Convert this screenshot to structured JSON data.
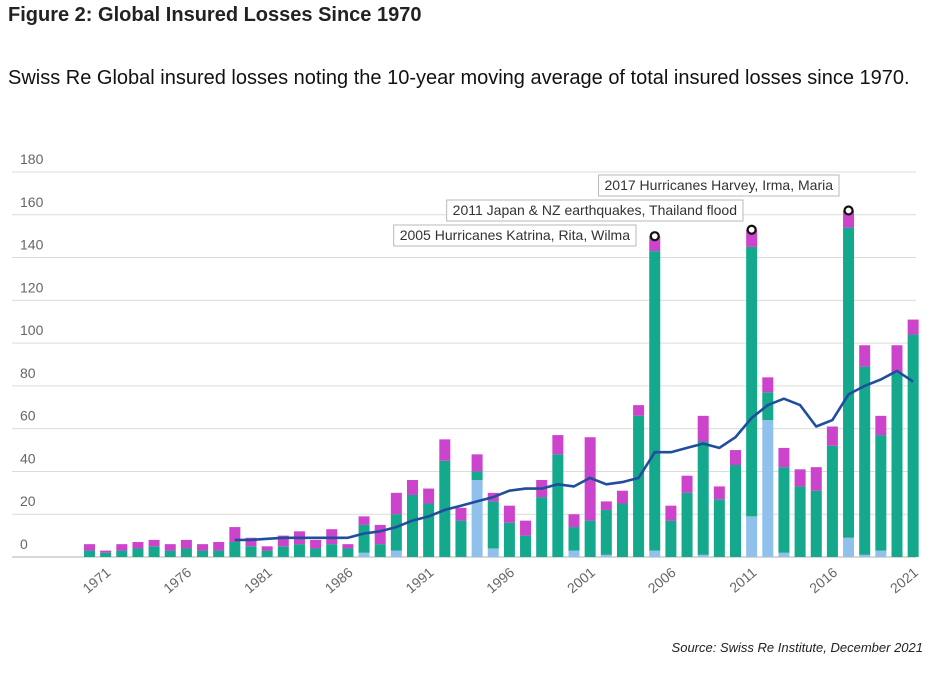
{
  "figure": {
    "title": "Figure 2: Global Insured Losses Since 1970",
    "subtitle": "Swiss Re Global insured losses noting the 10-year moving average of total insured losses since 1970.",
    "source": "Source: Swiss Re Institute, December 2021"
  },
  "chart_data": {
    "type": "bar",
    "stacked": true,
    "years": [
      1970,
      1971,
      1972,
      1973,
      1974,
      1975,
      1976,
      1977,
      1978,
      1979,
      1980,
      1981,
      1982,
      1983,
      1984,
      1985,
      1986,
      1987,
      1988,
      1989,
      1990,
      1991,
      1992,
      1993,
      1994,
      1995,
      1996,
      1997,
      1998,
      1999,
      2000,
      2001,
      2002,
      2003,
      2004,
      2005,
      2006,
      2007,
      2008,
      2009,
      2010,
      2011,
      2012,
      2013,
      2014,
      2015,
      2016,
      2017,
      2018,
      2019,
      2020,
      2021
    ],
    "series": [
      {
        "color": "#8fc1ec",
        "values": [
          0,
          0,
          0,
          0,
          0,
          0,
          0,
          0,
          0,
          0,
          0,
          0,
          0,
          0,
          0,
          0,
          0,
          2,
          0,
          3,
          0,
          0,
          0,
          0,
          36,
          4,
          0,
          0,
          0,
          0,
          3,
          0,
          1,
          0,
          0,
          3,
          0,
          0,
          1,
          0,
          0,
          19,
          64,
          2,
          0,
          0,
          0,
          9,
          1,
          3,
          0,
          0
        ]
      },
      {
        "color": "#14a88c",
        "values": [
          3,
          2,
          3,
          4,
          5,
          3,
          4,
          3,
          3,
          7,
          5,
          3,
          5,
          6,
          4,
          6,
          4,
          13,
          6,
          17,
          29,
          25,
          45,
          17,
          4,
          22,
          16,
          10,
          28,
          48,
          11,
          17,
          21,
          25,
          66,
          140,
          17,
          30,
          53,
          27,
          43,
          126,
          13,
          40,
          33,
          31,
          52,
          145,
          88,
          54,
          86,
          104
        ]
      },
      {
        "color": "#cc44cc",
        "values": [
          3,
          1,
          3,
          3,
          3,
          3,
          4,
          3,
          4,
          7,
          4,
          2,
          5,
          6,
          4,
          7,
          2,
          4,
          9,
          10,
          7,
          7,
          10,
          6,
          8,
          4,
          8,
          7,
          8,
          9,
          6,
          39,
          4,
          6,
          5,
          7,
          7,
          8,
          12,
          6,
          7,
          8,
          7,
          9,
          8,
          11,
          9,
          8,
          10,
          9,
          13,
          7
        ]
      }
    ],
    "moving_average": {
      "color": "#1f4e9c",
      "years": [
        1979,
        1980,
        1981,
        1982,
        1983,
        1984,
        1985,
        1986,
        1987,
        1988,
        1989,
        1990,
        1991,
        1992,
        1993,
        1994,
        1995,
        1996,
        1997,
        1998,
        1999,
        2000,
        2001,
        2002,
        2003,
        2004,
        2005,
        2006,
        2007,
        2008,
        2009,
        2010,
        2011,
        2012,
        2013,
        2014,
        2015,
        2016,
        2017,
        2018,
        2019,
        2020,
        2021
      ],
      "values": [
        8,
        8,
        8.5,
        9,
        9,
        9,
        9,
        9,
        11,
        12,
        14,
        17,
        19,
        22,
        24,
        26,
        28,
        31,
        32,
        32,
        34,
        33,
        37,
        34,
        35,
        37,
        49,
        49,
        51,
        53,
        51,
        56,
        65,
        71,
        74,
        71,
        61,
        64,
        76,
        80,
        83,
        87,
        82
      ]
    },
    "peaks": [
      {
        "year": 2005,
        "value": 150
      },
      {
        "year": 2011,
        "value": 153
      },
      {
        "year": 2017,
        "value": 162
      }
    ],
    "annotations": [
      "2005 Hurricanes Katrina, Rita, Wilma",
      "2011 Japan & NZ earthquakes, Thailand flood",
      "2017 Hurricanes Harvey, Irma, Maria"
    ],
    "y_ticks": [
      0,
      20,
      40,
      60,
      80,
      100,
      120,
      140,
      160,
      180
    ],
    "ylim": [
      0,
      180
    ],
    "x_tick_labels": [
      "1971",
      "1976",
      "1981",
      "1986",
      "1991",
      "1996",
      "2001",
      "2006",
      "2011",
      "2016",
      "2021"
    ],
    "grid": true
  }
}
